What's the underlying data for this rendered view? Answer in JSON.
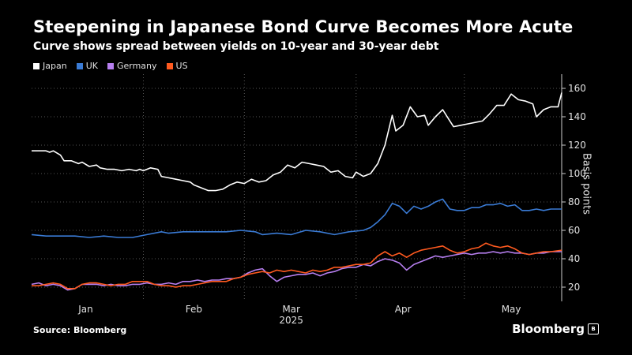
{
  "header": {
    "title": "Steepening in Japanese Bond Curve Becomes More Acute",
    "subtitle": "Curve shows spread between yields on 10-year and 30-year debt"
  },
  "footer": {
    "source": "Source: Bloomberg",
    "brand": "Bloomberg"
  },
  "chart_data": {
    "type": "line",
    "title": "Steepening in Japanese Bond Curve Becomes More Acute",
    "subtitle": "Curve shows spread between yields on 10-year and 30-year debt",
    "xlabel": "2025",
    "ylabel": "Basis points",
    "xlim": [
      0,
      142
    ],
    "x_ticks": [
      {
        "label": "Jan",
        "x": 15
      },
      {
        "label": "Feb",
        "x": 45
      },
      {
        "label": "Mar",
        "x": 72
      },
      {
        "label": "Apr",
        "x": 103
      },
      {
        "label": "May",
        "x": 133
      }
    ],
    "month_dividers": [
      31,
      59,
      90,
      120
    ],
    "ylim": [
      10,
      170
    ],
    "y_ticks": [
      20,
      40,
      60,
      80,
      100,
      120,
      140,
      160
    ],
    "grid": true,
    "legend": "top-left",
    "series": [
      {
        "name": "Japan",
        "color": "#ffffff",
        "points": [
          [
            0,
            116
          ],
          [
            4,
            116
          ],
          [
            5,
            115
          ],
          [
            6,
            116
          ],
          [
            8,
            113
          ],
          [
            9,
            109
          ],
          [
            11,
            109
          ],
          [
            13,
            107
          ],
          [
            14,
            108
          ],
          [
            16,
            105
          ],
          [
            18,
            106
          ],
          [
            19,
            104
          ],
          [
            21,
            103
          ],
          [
            23,
            103
          ],
          [
            25,
            102
          ],
          [
            27,
            103
          ],
          [
            29,
            102
          ],
          [
            30,
            103
          ],
          [
            31,
            102
          ],
          [
            33,
            104
          ],
          [
            35,
            103
          ],
          [
            36,
            98
          ],
          [
            38,
            97
          ],
          [
            40,
            96
          ],
          [
            42,
            95
          ],
          [
            44,
            94
          ],
          [
            45,
            92
          ],
          [
            47,
            90
          ],
          [
            49,
            88
          ],
          [
            51,
            88
          ],
          [
            53,
            89
          ],
          [
            55,
            92
          ],
          [
            57,
            94
          ],
          [
            59,
            93
          ],
          [
            61,
            96
          ],
          [
            63,
            94
          ],
          [
            65,
            95
          ],
          [
            67,
            99
          ],
          [
            69,
            101
          ],
          [
            71,
            106
          ],
          [
            73,
            104
          ],
          [
            75,
            108
          ],
          [
            77,
            107
          ],
          [
            79,
            106
          ],
          [
            81,
            105
          ],
          [
            83,
            101
          ],
          [
            85,
            102
          ],
          [
            87,
            98
          ],
          [
            89,
            97
          ],
          [
            90,
            101
          ],
          [
            92,
            98
          ],
          [
            94,
            100
          ],
          [
            96,
            107
          ],
          [
            98,
            120
          ],
          [
            100,
            141
          ],
          [
            101,
            130
          ],
          [
            103,
            134
          ],
          [
            105,
            147
          ],
          [
            107,
            140
          ],
          [
            109,
            141
          ],
          [
            110,
            134
          ],
          [
            112,
            140
          ],
          [
            114,
            145
          ],
          [
            116,
            137
          ],
          [
            117,
            133
          ],
          [
            119,
            134
          ],
          [
            121,
            135
          ],
          [
            123,
            136
          ],
          [
            125,
            137
          ],
          [
            127,
            142
          ],
          [
            129,
            148
          ],
          [
            131,
            148
          ],
          [
            133,
            156
          ],
          [
            135,
            152
          ],
          [
            137,
            151
          ],
          [
            139,
            149
          ],
          [
            140,
            140
          ],
          [
            142,
            145
          ],
          [
            144,
            147
          ],
          [
            146,
            147
          ],
          [
            147,
            157
          ]
        ]
      },
      {
        "name": "UK",
        "color": "#3a7bd5",
        "points": [
          [
            0,
            57
          ],
          [
            4,
            56
          ],
          [
            8,
            56
          ],
          [
            12,
            56
          ],
          [
            16,
            55
          ],
          [
            20,
            56
          ],
          [
            24,
            55
          ],
          [
            28,
            55
          ],
          [
            32,
            57
          ],
          [
            36,
            59
          ],
          [
            38,
            58
          ],
          [
            42,
            59
          ],
          [
            46,
            59
          ],
          [
            50,
            59
          ],
          [
            54,
            59
          ],
          [
            58,
            60
          ],
          [
            62,
            59
          ],
          [
            64,
            57
          ],
          [
            68,
            58
          ],
          [
            72,
            57
          ],
          [
            76,
            60
          ],
          [
            80,
            59
          ],
          [
            84,
            57
          ],
          [
            88,
            59
          ],
          [
            92,
            60
          ],
          [
            94,
            62
          ],
          [
            96,
            66
          ],
          [
            98,
            71
          ],
          [
            100,
            79
          ],
          [
            102,
            77
          ],
          [
            104,
            72
          ],
          [
            106,
            77
          ],
          [
            108,
            75
          ],
          [
            110,
            77
          ],
          [
            112,
            80
          ],
          [
            114,
            82
          ],
          [
            116,
            75
          ],
          [
            118,
            74
          ],
          [
            120,
            74
          ],
          [
            122,
            76
          ],
          [
            124,
            76
          ],
          [
            126,
            78
          ],
          [
            128,
            78
          ],
          [
            130,
            79
          ],
          [
            132,
            77
          ],
          [
            134,
            78
          ],
          [
            136,
            74
          ],
          [
            138,
            74
          ],
          [
            140,
            75
          ],
          [
            142,
            74
          ],
          [
            144,
            75
          ],
          [
            147,
            75
          ]
        ]
      },
      {
        "name": "Germany",
        "color": "#b77ff0",
        "points": [
          [
            0,
            22
          ],
          [
            2,
            23
          ],
          [
            4,
            21
          ],
          [
            6,
            22
          ],
          [
            8,
            21
          ],
          [
            10,
            18
          ],
          [
            12,
            19
          ],
          [
            14,
            22
          ],
          [
            16,
            22
          ],
          [
            18,
            22
          ],
          [
            20,
            21
          ],
          [
            22,
            22
          ],
          [
            24,
            21
          ],
          [
            26,
            21
          ],
          [
            28,
            22
          ],
          [
            30,
            22
          ],
          [
            32,
            23
          ],
          [
            34,
            22
          ],
          [
            36,
            22
          ],
          [
            38,
            23
          ],
          [
            40,
            22
          ],
          [
            42,
            24
          ],
          [
            44,
            24
          ],
          [
            46,
            25
          ],
          [
            48,
            24
          ],
          [
            50,
            25
          ],
          [
            52,
            25
          ],
          [
            54,
            26
          ],
          [
            56,
            26
          ],
          [
            58,
            27
          ],
          [
            60,
            30
          ],
          [
            62,
            32
          ],
          [
            64,
            33
          ],
          [
            66,
            28
          ],
          [
            68,
            24
          ],
          [
            70,
            27
          ],
          [
            72,
            28
          ],
          [
            74,
            29
          ],
          [
            76,
            29
          ],
          [
            78,
            30
          ],
          [
            80,
            28
          ],
          [
            82,
            30
          ],
          [
            84,
            31
          ],
          [
            86,
            33
          ],
          [
            88,
            34
          ],
          [
            90,
            34
          ],
          [
            92,
            36
          ],
          [
            94,
            35
          ],
          [
            96,
            38
          ],
          [
            98,
            40
          ],
          [
            100,
            39
          ],
          [
            102,
            37
          ],
          [
            104,
            32
          ],
          [
            106,
            36
          ],
          [
            108,
            38
          ],
          [
            110,
            40
          ],
          [
            112,
            42
          ],
          [
            114,
            41
          ],
          [
            116,
            42
          ],
          [
            118,
            43
          ],
          [
            120,
            44
          ],
          [
            122,
            43
          ],
          [
            124,
            44
          ],
          [
            126,
            44
          ],
          [
            128,
            45
          ],
          [
            130,
            44
          ],
          [
            132,
            45
          ],
          [
            134,
            44
          ],
          [
            136,
            44
          ],
          [
            138,
            43
          ],
          [
            140,
            44
          ],
          [
            142,
            44
          ],
          [
            144,
            45
          ],
          [
            147,
            45
          ]
        ]
      },
      {
        "name": "US",
        "color": "#ff5a1f",
        "points": [
          [
            0,
            21
          ],
          [
            2,
            21
          ],
          [
            4,
            22
          ],
          [
            6,
            23
          ],
          [
            8,
            22
          ],
          [
            10,
            19
          ],
          [
            12,
            19
          ],
          [
            14,
            22
          ],
          [
            16,
            23
          ],
          [
            18,
            23
          ],
          [
            20,
            22
          ],
          [
            22,
            21
          ],
          [
            24,
            22
          ],
          [
            26,
            22
          ],
          [
            28,
            24
          ],
          [
            30,
            24
          ],
          [
            32,
            24
          ],
          [
            34,
            22
          ],
          [
            36,
            21
          ],
          [
            38,
            21
          ],
          [
            40,
            20
          ],
          [
            42,
            21
          ],
          [
            44,
            21
          ],
          [
            46,
            22
          ],
          [
            48,
            23
          ],
          [
            50,
            24
          ],
          [
            52,
            24
          ],
          [
            54,
            24
          ],
          [
            56,
            26
          ],
          [
            58,
            27
          ],
          [
            60,
            29
          ],
          [
            62,
            30
          ],
          [
            64,
            31
          ],
          [
            66,
            30
          ],
          [
            68,
            32
          ],
          [
            70,
            31
          ],
          [
            72,
            32
          ],
          [
            74,
            31
          ],
          [
            76,
            30
          ],
          [
            78,
            32
          ],
          [
            80,
            31
          ],
          [
            82,
            32
          ],
          [
            84,
            34
          ],
          [
            86,
            34
          ],
          [
            88,
            35
          ],
          [
            90,
            36
          ],
          [
            92,
            36
          ],
          [
            94,
            37
          ],
          [
            96,
            42
          ],
          [
            98,
            45
          ],
          [
            100,
            42
          ],
          [
            102,
            44
          ],
          [
            104,
            41
          ],
          [
            106,
            44
          ],
          [
            108,
            46
          ],
          [
            110,
            47
          ],
          [
            112,
            48
          ],
          [
            114,
            49
          ],
          [
            116,
            46
          ],
          [
            118,
            44
          ],
          [
            120,
            45
          ],
          [
            122,
            47
          ],
          [
            124,
            48
          ],
          [
            126,
            51
          ],
          [
            128,
            49
          ],
          [
            130,
            48
          ],
          [
            132,
            49
          ],
          [
            134,
            47
          ],
          [
            136,
            44
          ],
          [
            138,
            43
          ],
          [
            140,
            44
          ],
          [
            142,
            45
          ],
          [
            144,
            45
          ],
          [
            147,
            46
          ]
        ]
      }
    ]
  }
}
